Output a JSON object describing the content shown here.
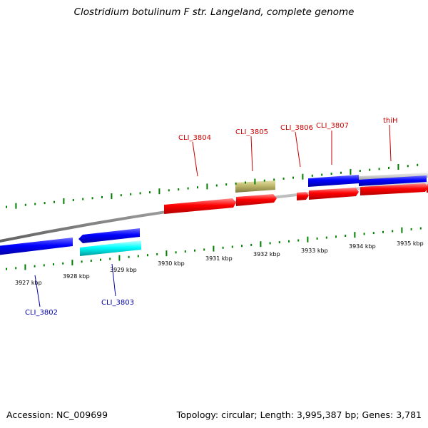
{
  "title": "Clostridium botulinum F str. Langeland, complete genome",
  "footer": {
    "accession": "Accession: NC_009699",
    "summary": "Topology: circular; Length: 3,995,387 bp; Genes: 3,781"
  },
  "colors": {
    "forward_gene": "#ff0000",
    "reverse_gene": "#0000ff",
    "reverse_gene_alt": "#00ffff",
    "rna_feature": "#bdb76b",
    "forward_label": "#cc0000",
    "reverse_label": "#0000aa",
    "ticks": "#008000",
    "backbone": "#808080"
  },
  "scale_labels": [
    "3927 kbp",
    "3928 kbp",
    "3929 kbp",
    "3930 kbp",
    "3931 kbp",
    "3932 kbp",
    "3933 kbp",
    "3934 kbp",
    "3935 kbp"
  ],
  "forward_gene_labels": [
    "CLI_3804",
    "CLI_3805",
    "CLI_3806",
    "CLI_3807",
    "thiH"
  ],
  "reverse_gene_labels": [
    "CLI_3802",
    "CLI_3803"
  ]
}
